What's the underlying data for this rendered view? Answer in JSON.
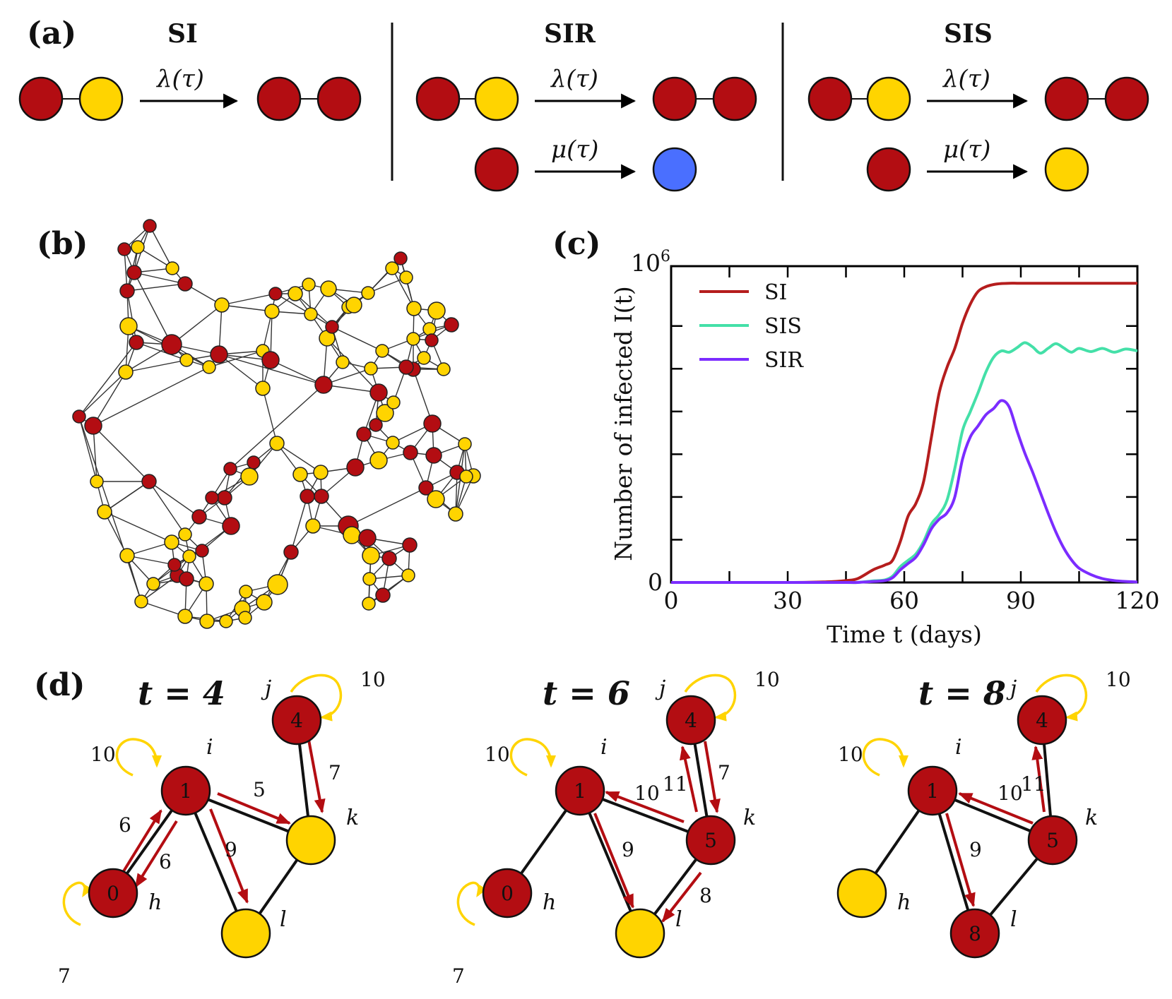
{
  "colors": {
    "infected": "#b30d12",
    "susceptible": "#ffd400",
    "recovered": "#4a6fff",
    "transmission": "#b30d12",
    "selfloop": "#ffd400",
    "si_line": "#b51d1d",
    "sis_line": "#44e0a8",
    "sir_line": "#7b2cff"
  },
  "panel_a": {
    "label": "(a)",
    "models": [
      {
        "title": "SI",
        "rates": [
          "λ(τ)"
        ]
      },
      {
        "title": "SIR",
        "rates": [
          "λ(τ)",
          "μ(τ)"
        ]
      },
      {
        "title": "SIS",
        "rates": [
          "λ(τ)",
          "μ(τ)"
        ]
      }
    ]
  },
  "panel_b": {
    "label": "(b)"
  },
  "panel_c": {
    "label": "(c)",
    "chart_data": {
      "type": "line",
      "title": "",
      "xlabel": "Time t (days)",
      "ylabel": "Number of infected I(t)",
      "xlim": [
        0,
        120
      ],
      "ylim": [
        0,
        1000000
      ],
      "x_ticks": [
        "0",
        "30",
        "60",
        "90",
        "120"
      ],
      "y_ticks": [
        "0",
        "10^6"
      ],
      "legend_position": "top-left",
      "x": [
        0,
        30,
        40,
        45,
        48,
        52,
        55,
        57,
        59,
        61,
        63,
        65,
        67,
        69,
        71,
        73,
        75,
        77,
        79,
        81,
        83,
        85,
        87,
        89,
        91,
        93,
        95,
        97,
        99,
        101,
        103,
        105,
        108,
        111,
        114,
        117,
        120
      ],
      "series": [
        {
          "name": "SI",
          "color": "#b51d1d",
          "values": [
            0,
            0,
            2000,
            6000,
            12000,
            40000,
            55000,
            70000,
            130000,
            210000,
            250000,
            320000,
            460000,
            600000,
            680000,
            740000,
            820000,
            880000,
            920000,
            935000,
            942000,
            945000,
            946000,
            946000,
            946000,
            946000,
            946000,
            946000,
            946000,
            946000,
            946000,
            946000,
            946000,
            946000,
            946000,
            946000,
            946000
          ]
        },
        {
          "name": "SIS",
          "color": "#44e0a8",
          "values": [
            0,
            0,
            0,
            0,
            0,
            5000,
            8000,
            20000,
            50000,
            70000,
            90000,
            130000,
            185000,
            215000,
            260000,
            360000,
            480000,
            540000,
            600000,
            665000,
            712000,
            732000,
            728000,
            742000,
            758000,
            745000,
            725000,
            740000,
            755000,
            742000,
            728000,
            740000,
            730000,
            740000,
            728000,
            738000,
            732000
          ]
        },
        {
          "name": "SIR",
          "color": "#7b2cff",
          "values": [
            0,
            0,
            0,
            0,
            0,
            3000,
            6000,
            15000,
            40000,
            60000,
            80000,
            120000,
            170000,
            200000,
            220000,
            270000,
            390000,
            460000,
            495000,
            530000,
            550000,
            575000,
            555000,
            480000,
            410000,
            350000,
            285000,
            220000,
            160000,
            110000,
            72000,
            45000,
            25000,
            12000,
            6000,
            3000,
            1500
          ]
        }
      ]
    }
  },
  "panel_d": {
    "label": "(d)",
    "snapshots": [
      {
        "title": "t = 4",
        "nodes": {
          "h": "0",
          "i": "1",
          "j": "4",
          "k": "",
          "l": ""
        },
        "node_names": {
          "h": "h",
          "i": "i",
          "j": "j",
          "k": "k",
          "l": "l"
        },
        "loops": {
          "h": "7",
          "i": "10",
          "j": "10"
        },
        "edges": {
          "ih_out": "6",
          "ih_in": "6",
          "ik": "5",
          "il": "9",
          "jk": "7"
        }
      },
      {
        "title": "t = 6",
        "nodes": {
          "h": "0",
          "i": "1",
          "j": "4",
          "k": "5",
          "l": ""
        },
        "node_names": {
          "h": "h",
          "i": "i",
          "j": "j",
          "k": "k",
          "l": "l"
        },
        "loops": {
          "h": "7",
          "i": "10",
          "j": "10"
        },
        "edges": {
          "il": "9",
          "ki": "10",
          "kj": "11",
          "jk": "7",
          "kl": "8"
        }
      },
      {
        "title": "t = 8",
        "nodes": {
          "h": "",
          "i": "1",
          "j": "4",
          "k": "5",
          "l": "8"
        },
        "node_names": {
          "h": "h",
          "i": "i",
          "j": "j",
          "k": "k",
          "l": "l"
        },
        "loops": {
          "i": "10",
          "j": "10"
        },
        "edges": {
          "il": "9",
          "ki": "10",
          "kj": "11"
        }
      }
    ]
  }
}
